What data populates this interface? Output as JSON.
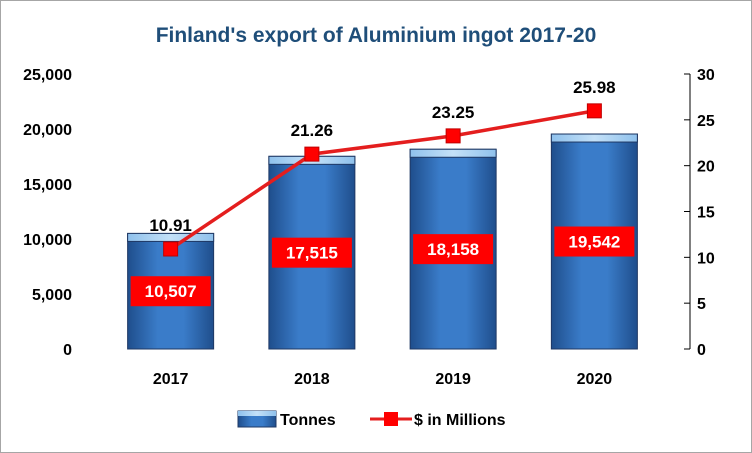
{
  "chart_data": {
    "type": "bar",
    "title": "Finland's export of Aluminium ingot 2017-20",
    "categories": [
      "2017",
      "2018",
      "2019",
      "2020"
    ],
    "series": [
      {
        "name": "Tonnes",
        "kind": "bar",
        "axis": "left",
        "values": [
          10507,
          17515,
          18158,
          19542
        ],
        "labels": [
          "10,507",
          "17,515",
          "18,158",
          "19,542"
        ]
      },
      {
        "name": "$ in Millions",
        "kind": "line",
        "axis": "right",
        "values": [
          10.91,
          21.26,
          23.25,
          25.98
        ],
        "labels": [
          "10.91",
          "21.26",
          "23.25",
          "25.98"
        ]
      }
    ],
    "left_axis": {
      "ylim": [
        0,
        25000
      ],
      "ticks": [
        "0",
        "5,000",
        "10,000",
        "15,000",
        "20,000",
        "25,000"
      ]
    },
    "right_axis": {
      "ylim": [
        0,
        30
      ],
      "ticks": [
        "0",
        "5",
        "10",
        "15",
        "20",
        "25",
        "30"
      ]
    },
    "legend_position": "bottom",
    "grid": false,
    "colors": {
      "bar": "#2e75b6",
      "bar_top": "#9dc3e6",
      "line": "#e41e1e",
      "marker": "#ff0000",
      "title": "#1f4e79"
    }
  }
}
